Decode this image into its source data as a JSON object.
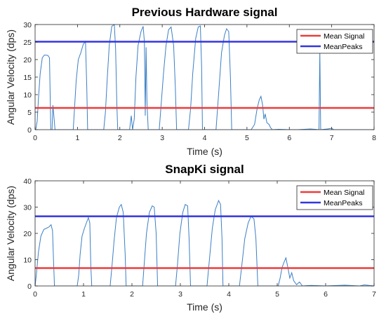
{
  "chart_data": [
    {
      "type": "line",
      "title": "Previous Hardware signal",
      "xlabel": "Time (s)",
      "ylabel": "Angular Velocity (dps)",
      "xlim": [
        0,
        8
      ],
      "ylim": [
        0,
        30
      ],
      "xticks": [
        "0",
        "1",
        "2",
        "3",
        "4",
        "5",
        "6",
        "7",
        "8"
      ],
      "yticks": [
        "0",
        "5",
        "10",
        "15",
        "20",
        "25",
        "30"
      ],
      "grid": false,
      "legend_position": "top-right",
      "legend": [
        "Mean Signal",
        "MeanPeaks"
      ],
      "series": [
        {
          "color": "#3b7fc4",
          "points": [
            [
              0,
              0
            ],
            [
              0.02,
              0.3
            ],
            [
              0.05,
              2.5
            ],
            [
              0.08,
              9
            ],
            [
              0.12,
              16
            ],
            [
              0.17,
              20.5
            ],
            [
              0.22,
              21.3
            ],
            [
              0.3,
              21.2
            ],
            [
              0.34,
              20.5
            ],
            [
              0.37,
              0
            ],
            [
              0.4,
              0
            ],
            [
              0.42,
              7
            ],
            [
              0.45,
              3
            ],
            [
              0.47,
              0
            ],
            [
              0.9,
              0
            ],
            [
              0.93,
              6
            ],
            [
              0.97,
              14
            ],
            [
              1.02,
              20
            ],
            [
              1.08,
              22
            ],
            [
              1.14,
              24.5
            ],
            [
              1.19,
              25
            ],
            [
              1.22,
              12
            ],
            [
              1.24,
              0
            ],
            [
              1.62,
              0
            ],
            [
              1.66,
              5
            ],
            [
              1.7,
              14
            ],
            [
              1.75,
              24
            ],
            [
              1.81,
              29.5
            ],
            [
              1.87,
              30
            ],
            [
              1.9,
              23
            ],
            [
              1.93,
              7
            ],
            [
              1.95,
              0
            ],
            [
              2.23,
              0
            ],
            [
              2.27,
              4
            ],
            [
              2.3,
              0
            ],
            [
              2.34,
              3
            ],
            [
              2.38,
              15
            ],
            [
              2.43,
              24
            ],
            [
              2.5,
              28
            ],
            [
              2.55,
              29.5
            ],
            [
              2.58,
              25
            ],
            [
              2.6,
              4
            ],
            [
              2.62,
              23.5
            ],
            [
              2.64,
              8
            ],
            [
              2.67,
              0
            ],
            [
              2.93,
              0
            ],
            [
              2.98,
              8
            ],
            [
              3.03,
              16
            ],
            [
              3.09,
              24
            ],
            [
              3.15,
              28.5
            ],
            [
              3.21,
              29.3
            ],
            [
              3.27,
              24
            ],
            [
              3.31,
              12
            ],
            [
              3.34,
              0
            ],
            [
              3.62,
              0
            ],
            [
              3.67,
              6
            ],
            [
              3.72,
              16
            ],
            [
              3.79,
              26
            ],
            [
              3.85,
              29.3
            ],
            [
              3.9,
              29.6
            ],
            [
              3.93,
              18
            ],
            [
              3.95,
              0
            ],
            [
              4.27,
              0
            ],
            [
              4.33,
              10
            ],
            [
              4.4,
              22
            ],
            [
              4.47,
              27
            ],
            [
              4.52,
              28.8
            ],
            [
              4.57,
              28
            ],
            [
              4.61,
              15
            ],
            [
              4.64,
              0
            ],
            [
              5.1,
              0
            ],
            [
              5.18,
              1.5
            ],
            [
              5.24,
              6
            ],
            [
              5.29,
              8.5
            ],
            [
              5.33,
              9.5
            ],
            [
              5.37,
              7
            ],
            [
              5.4,
              3
            ],
            [
              5.43,
              4.5
            ],
            [
              5.47,
              2
            ],
            [
              5.52,
              1.5
            ],
            [
              5.56,
              0.5
            ],
            [
              5.6,
              0
            ],
            [
              5.75,
              0.1
            ],
            [
              6.0,
              0
            ],
            [
              6.2,
              0
            ],
            [
              6.5,
              0.2
            ],
            [
              6.7,
              0
            ],
            [
              6.72,
              22.5
            ],
            [
              6.74,
              0
            ],
            [
              6.9,
              0.2
            ],
            [
              7.0,
              0.4
            ],
            [
              7.05,
              0
            ],
            [
              8.0,
              0
            ]
          ]
        }
      ],
      "hlines": [
        {
          "name": "Mean Signal",
          "y": 6.2,
          "color": "#ee3b3b"
        },
        {
          "name": "MeanPeaks",
          "y": 25.1,
          "color": "#3535e0"
        }
      ]
    },
    {
      "type": "line",
      "title": "SnapKi signal",
      "xlabel": "Time (s)",
      "ylabel": "Angular Velocity (dps)",
      "xlim": [
        0,
        7
      ],
      "ylim": [
        0,
        40
      ],
      "xticks": [
        "0",
        "1",
        "2",
        "3",
        "4",
        "5",
        "6",
        "7"
      ],
      "yticks": [
        "0",
        "10",
        "20",
        "30",
        "40"
      ],
      "grid": false,
      "legend_position": "top-right",
      "legend": [
        "Mean Signal",
        "MeanPeaks"
      ],
      "series": [
        {
          "color": "#3b7fc4",
          "points": [
            [
              0,
              0
            ],
            [
              0.03,
              5
            ],
            [
              0.07,
              13
            ],
            [
              0.12,
              19
            ],
            [
              0.18,
              21.5
            ],
            [
              0.24,
              22
            ],
            [
              0.29,
              22.5
            ],
            [
              0.33,
              23.3
            ],
            [
              0.36,
              21
            ],
            [
              0.38,
              10
            ],
            [
              0.4,
              0
            ],
            [
              0.87,
              0
            ],
            [
              0.9,
              4
            ],
            [
              0.93,
              12
            ],
            [
              0.97,
              19
            ],
            [
              1.02,
              22
            ],
            [
              1.06,
              24
            ],
            [
              1.1,
              26
            ],
            [
              1.13,
              24
            ],
            [
              1.15,
              8
            ],
            [
              1.17,
              0
            ],
            [
              1.55,
              0
            ],
            [
              1.59,
              8
            ],
            [
              1.63,
              17
            ],
            [
              1.68,
              26
            ],
            [
              1.74,
              30
            ],
            [
              1.78,
              31
            ],
            [
              1.82,
              28
            ],
            [
              1.86,
              12
            ],
            [
              1.88,
              0
            ],
            [
              2.22,
              0
            ],
            [
              2.26,
              10
            ],
            [
              2.3,
              20
            ],
            [
              2.36,
              28
            ],
            [
              2.42,
              30.5
            ],
            [
              2.46,
              30
            ],
            [
              2.5,
              20
            ],
            [
              2.53,
              0
            ],
            [
              2.9,
              0
            ],
            [
              2.94,
              8
            ],
            [
              2.99,
              20
            ],
            [
              3.05,
              28
            ],
            [
              3.1,
              31
            ],
            [
              3.15,
              30.5
            ],
            [
              3.18,
              18
            ],
            [
              3.21,
              0
            ],
            [
              3.55,
              0
            ],
            [
              3.6,
              10
            ],
            [
              3.66,
              22
            ],
            [
              3.72,
              29
            ],
            [
              3.79,
              32.5
            ],
            [
              3.83,
              31
            ],
            [
              3.86,
              18
            ],
            [
              3.88,
              0
            ],
            [
              4.22,
              0
            ],
            [
              4.27,
              8
            ],
            [
              4.33,
              18
            ],
            [
              4.4,
              24
            ],
            [
              4.46,
              26.5
            ],
            [
              4.52,
              25.5
            ],
            [
              4.56,
              18
            ],
            [
              4.6,
              0
            ],
            [
              5.02,
              0
            ],
            [
              5.06,
              3
            ],
            [
              5.1,
              7
            ],
            [
              5.14,
              9
            ],
            [
              5.18,
              10.7
            ],
            [
              5.22,
              7
            ],
            [
              5.26,
              3
            ],
            [
              5.3,
              5
            ],
            [
              5.34,
              2
            ],
            [
              5.4,
              0.5
            ],
            [
              5.46,
              1.5
            ],
            [
              5.52,
              0
            ],
            [
              5.7,
              0.2
            ],
            [
              6.0,
              0
            ],
            [
              6.4,
              0.3
            ],
            [
              6.7,
              0
            ],
            [
              6.8,
              0.4
            ],
            [
              6.9,
              0.2
            ],
            [
              7.0,
              0
            ]
          ]
        }
      ],
      "hlines": [
        {
          "name": "Mean Signal",
          "y": 6.8,
          "color": "#ee3b3b"
        },
        {
          "name": "MeanPeaks",
          "y": 26.5,
          "color": "#3535e0"
        }
      ]
    }
  ]
}
